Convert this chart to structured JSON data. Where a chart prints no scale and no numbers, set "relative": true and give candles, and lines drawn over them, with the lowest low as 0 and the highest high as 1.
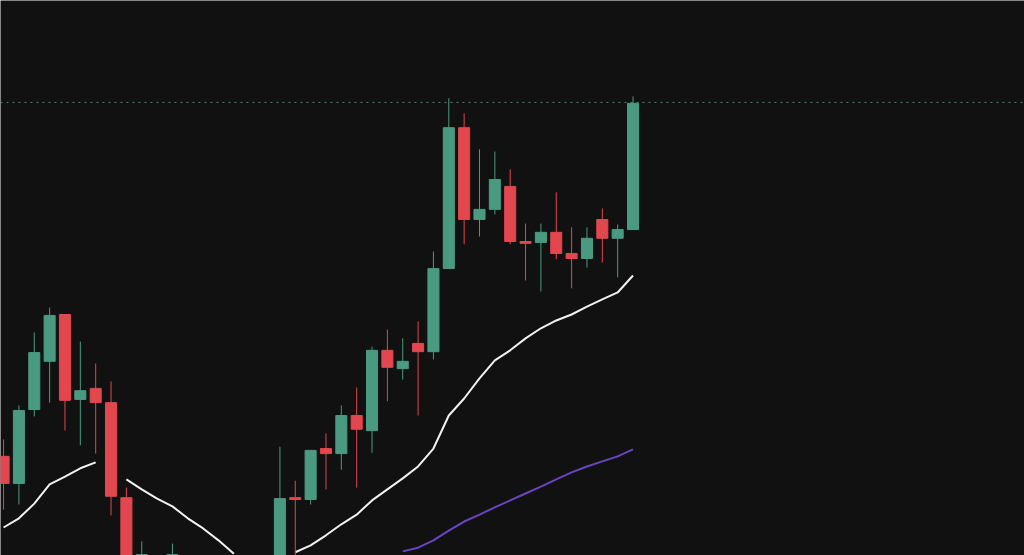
{
  "chart_data": {
    "type": "candlestick",
    "relative": true,
    "tick_labels": false,
    "grid": false,
    "categories": [
      null,
      null,
      null,
      null,
      null,
      null,
      null,
      null,
      null,
      null,
      null,
      null,
      null,
      null,
      null,
      null,
      null,
      null,
      null,
      null,
      null,
      null,
      null,
      null,
      null,
      null,
      null,
      null,
      null,
      null,
      null,
      null,
      null,
      null,
      null,
      null,
      null,
      null,
      null,
      null,
      null,
      null,
      null,
      null,
      null,
      null,
      null,
      null,
      null,
      null,
      null,
      null,
      null,
      null,
      null,
      null,
      null,
      null,
      null,
      null,
      null,
      null,
      null,
      null,
      null,
      null,
      null
    ],
    "colors": [
      "#e2474f",
      "#4a9a82",
      "#4a9a82",
      "#4a9a82",
      "#e2474f",
      "#4a9a82",
      "#e2474f",
      "#e2474f",
      "#e2474f",
      "#4a9a82",
      null,
      "#4a9a82",
      null,
      null,
      null,
      null,
      null,
      null,
      "#4a9a82",
      "#e2474f",
      "#4a9a82",
      "#e2474f",
      "#4a9a82",
      "#e2474f",
      "#4a9a82",
      "#e2474f",
      "#4a9a82",
      "#e2474f",
      "#4a9a82",
      "#4a9a82",
      "#e2474f",
      "#4a9a82",
      "#4a9a82",
      "#e2474f",
      "#e2474f",
      "#4a9a82",
      "#e2474f",
      "#e2474f",
      "#4a9a82",
      "#e2474f",
      "#4a9a82",
      "#4a9a82",
      null,
      null,
      null,
      null,
      null,
      null,
      null,
      null,
      null,
      null,
      null,
      null,
      null,
      null,
      null,
      null,
      null,
      null,
      null,
      null,
      null,
      null,
      null,
      null,
      null
    ],
    "ohlc": [
      [
        0.216,
        0.253,
        0.1,
        0.157
      ],
      [
        0.157,
        0.327,
        0.111,
        0.316
      ],
      [
        0.318,
        0.486,
        0.303,
        0.442
      ],
      [
        0.423,
        0.54,
        0.333,
        0.523
      ],
      [
        0.525,
        0.525,
        0.272,
        0.338
      ],
      [
        0.34,
        0.466,
        0.24,
        0.359
      ],
      [
        0.364,
        0.418,
        0.222,
        0.333
      ],
      [
        0.333,
        0.379,
        0.087,
        0.129
      ],
      [
        0.126,
        0.148,
        0,
        0
      ],
      [
        0,
        0.031,
        0,
        0
      ],
      null,
      [
        0,
        0.026,
        0,
        0
      ],
      null,
      null,
      null,
      null,
      null,
      null,
      [
        0,
        0.237,
        0,
        0.124
      ],
      [
        0.126,
        0.163,
        0,
        0.122
      ],
      [
        0.122,
        0.229,
        0.111,
        0.229
      ],
      [
        0.233,
        0.266,
        0.144,
        0.222
      ],
      [
        0.222,
        0.327,
        0.187,
        0.305
      ],
      [
        0.305,
        0.366,
        0.148,
        0.275
      ],
      [
        0.272,
        0.455,
        0.224,
        0.447
      ],
      [
        0.447,
        0.492,
        0.336,
        0.41
      ],
      [
        0.407,
        0.473,
        0.383,
        0.423
      ],
      [
        0.462,
        0.51,
        0.305,
        0.444
      ],
      [
        0.444,
        0.662,
        0.427,
        0.625
      ],
      [
        0.625,
        0.996,
        0.625,
        0.932
      ],
      [
        0.932,
        0.963,
        0.678,
        0.732
      ],
      [
        0.732,
        0.885,
        0.695,
        0.754
      ],
      [
        0.754,
        0.88,
        0.743,
        0.819
      ],
      [
        0.804,
        0.841,
        0.678,
        0.684
      ],
      [
        0.684,
        0.723,
        0.599,
        0.68
      ],
      [
        0.682,
        0.723,
        0.575,
        0.704
      ],
      [
        0.704,
        0.791,
        0.645,
        0.658
      ],
      [
        0.658,
        0.715,
        0.582,
        0.647
      ],
      [
        0.647,
        0.715,
        0.627,
        0.691
      ],
      [
        0.732,
        0.756,
        0.638,
        0.691
      ],
      [
        0.691,
        0.721,
        0.606,
        0.71
      ],
      [
        0.71,
        1,
        0.71,
        0.985
      ],
      null,
      null,
      null,
      null,
      null,
      null,
      null,
      null,
      null,
      null,
      null,
      null,
      null,
      null,
      null,
      null,
      null,
      null,
      null,
      null,
      null,
      null,
      null,
      null,
      null
    ],
    "series": [
      {
        "type": "line",
        "color": "#f2f2f2",
        "values": [
          0.061,
          0.081,
          0.113,
          0.155,
          0.172,
          0.19,
          0.203,
          null,
          0.166,
          0.144,
          0.124,
          0.107,
          0.081,
          0.059,
          0.033,
          0.004,
          null,
          null,
          null,
          0.007,
          0.022,
          0.044,
          0.068,
          0.089,
          0.12,
          0.144,
          0.168,
          0.194,
          0.233,
          0.305,
          0.342,
          0.386,
          0.425,
          0.447,
          0.473,
          0.495,
          0.512,
          0.525,
          0.542,
          0.558,
          0.573,
          0.61,
          null,
          null,
          null,
          null,
          null,
          null,
          null,
          null,
          null,
          null,
          null,
          null,
          null,
          null,
          null,
          null,
          null,
          null,
          null,
          null,
          null,
          null,
          null,
          null,
          null
        ]
      },
      {
        "type": "line",
        "color": "#6a45c2",
        "values": [
          null,
          null,
          null,
          null,
          null,
          null,
          null,
          null,
          null,
          null,
          null,
          null,
          null,
          null,
          null,
          null,
          null,
          null,
          null,
          null,
          null,
          null,
          null,
          null,
          null,
          null,
          0.009,
          0.017,
          0.033,
          0.054,
          0.074,
          0.089,
          0.105,
          0.12,
          0.135,
          0.15,
          0.166,
          0.181,
          0.194,
          0.205,
          0.216,
          0.231,
          null,
          null,
          null,
          null,
          null,
          null,
          null,
          null,
          null,
          null,
          null,
          null,
          null,
          null,
          null,
          null,
          null,
          null,
          null,
          null,
          null,
          null,
          null,
          null,
          null
        ]
      }
    ],
    "ref_lines": [
      {
        "axis": "y",
        "value": 0.987,
        "color": "#3c8f7c",
        "line_style": "dotted"
      }
    ]
  }
}
